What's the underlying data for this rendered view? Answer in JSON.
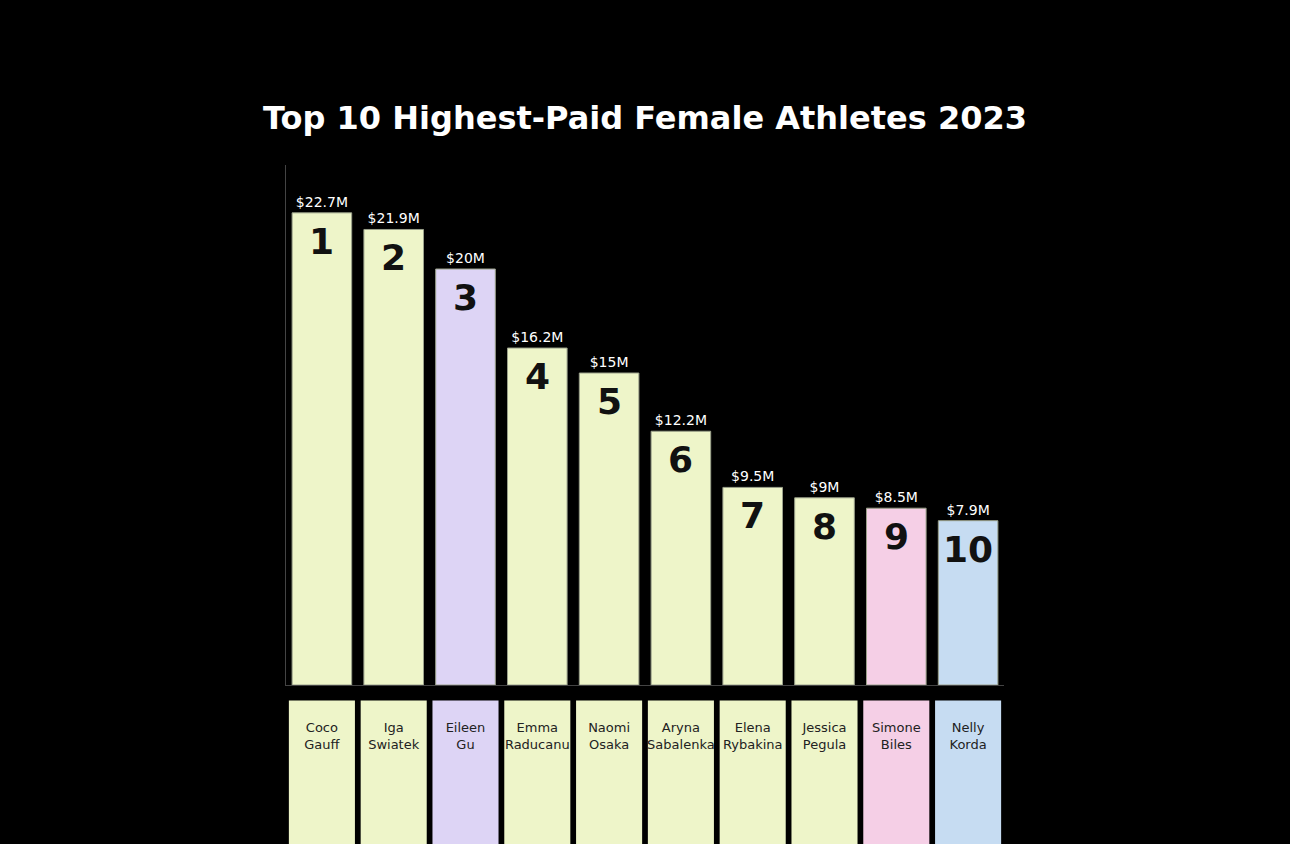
{
  "chart_data": {
    "type": "bar",
    "title": "Top 10 Highest-Paid Female Athletes 2023",
    "categories": [
      "Coco Gauff",
      "Iga Swiatek",
      "Eileen Gu",
      "Emma Raducanu",
      "Naomi Osaka",
      "Aryna Sabalenka",
      "Elena Rybakina",
      "Jessica Pegula",
      "Simone Biles",
      "Nelly Korda"
    ],
    "values": [
      22.7,
      21.9,
      20,
      16.2,
      15,
      12.2,
      9.5,
      9,
      8.5,
      7.9
    ],
    "value_labels": [
      "$22.7M",
      "$21.9M",
      "$20M",
      "$16.2M",
      "$15M",
      "$12.2M",
      "$9.5M",
      "$9M",
      "$8.5M",
      "$7.9M"
    ],
    "ranks": [
      1,
      2,
      3,
      4,
      5,
      6,
      7,
      8,
      9,
      10
    ],
    "colors": [
      "#eef5c9",
      "#eef5c9",
      "#ddd4f5",
      "#eef5c9",
      "#eef5c9",
      "#eef5c9",
      "#eef5c9",
      "#eef5c9",
      "#f5cfe6",
      "#c6dcf2"
    ],
    "ylim": [
      0,
      25
    ],
    "data_labels": true,
    "tick_labels": "x",
    "grid": false
  }
}
